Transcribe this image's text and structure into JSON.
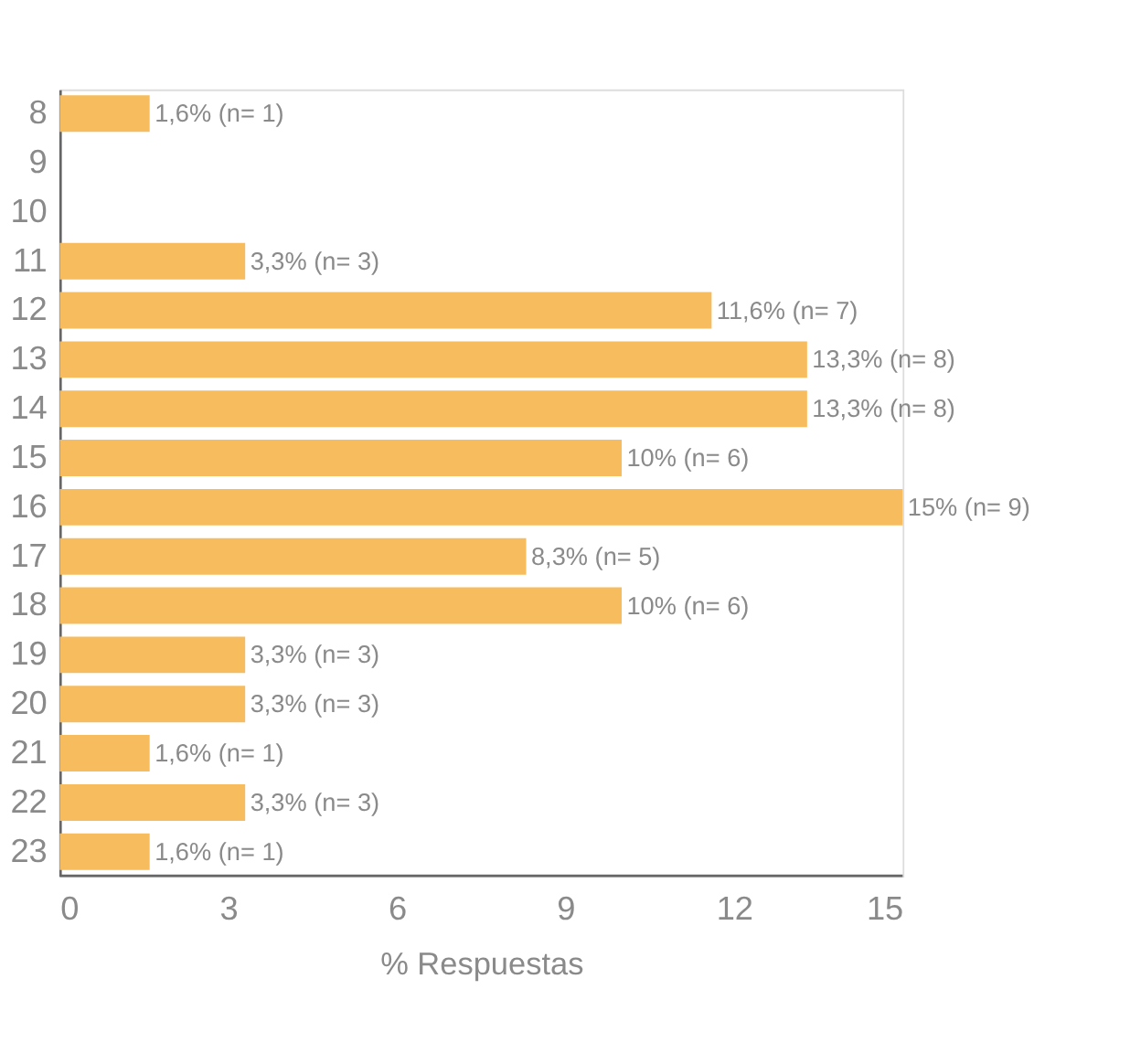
{
  "chart_data": {
    "type": "bar",
    "orientation": "horizontal",
    "xlabel": "% Respuestas",
    "categories": [
      "8",
      "9",
      "10",
      "11",
      "12",
      "13",
      "14",
      "15",
      "16",
      "17",
      "18",
      "19",
      "20",
      "21",
      "22",
      "23"
    ],
    "values": [
      1.6,
      null,
      null,
      3.3,
      11.6,
      13.3,
      13.3,
      10,
      15,
      8.3,
      10,
      3.3,
      3.3,
      1.6,
      3.3,
      1.6
    ],
    "value_labels": [
      "1,6% (n= 1)",
      null,
      null,
      "3,3% (n= 3)",
      "11,6% (n= 7)",
      "13,3% (n= 8)",
      "13,3% (n= 8)",
      "10% (n= 6)",
      "15% (n= 9)",
      "8,3% (n= 5)",
      "10% (n= 6)",
      "3,3% (n= 3)",
      "3,3% (n= 3)",
      "1,6% (n= 1)",
      "3,3% (n= 3)",
      "1,6% (n= 1)"
    ],
    "color": "#f7bc5e",
    "xlim": [
      0,
      15
    ],
    "xticks": [
      0,
      3,
      6,
      9,
      12,
      15
    ],
    "grid": false
  }
}
